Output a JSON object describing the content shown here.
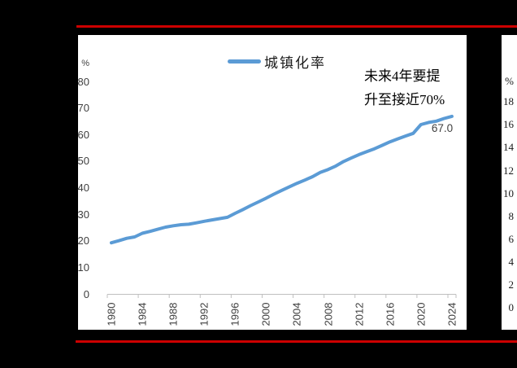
{
  "page": {
    "background_color": "#000000",
    "accent_red": "#CC0000"
  },
  "chart": {
    "legend_label": "城镇化率",
    "unit_label": "%",
    "annotation_line1": "未来4年要提",
    "annotation_line2": "升至接近70%",
    "end_value_label": "67.0",
    "line_color": "#5B9BD5",
    "axis_color": "#BFBFBF",
    "text_color": "#404040",
    "y_ticks": [
      "80",
      "70",
      "60",
      "50",
      "40",
      "30",
      "20",
      "10",
      "0"
    ],
    "x_ticks": [
      "1980",
      "1984",
      "1988",
      "1992",
      "1996",
      "2000",
      "2004",
      "2008",
      "2012",
      "2016",
      "2020",
      "2024"
    ]
  },
  "right_chart": {
    "unit_label": "%",
    "y_ticks": [
      "18",
      "16",
      "14",
      "12",
      "10",
      "8",
      "6",
      "4",
      "2",
      "0"
    ]
  },
  "chart_data": [
    {
      "type": "line",
      "title": "",
      "legend": [
        "城镇化率"
      ],
      "legend_position": "top",
      "ylabel": "%",
      "ylim": [
        0,
        80
      ],
      "ytick_step": 10,
      "xtick_step": 4,
      "grid": false,
      "annotation": "未来4年要提升至接近70%",
      "last_point_label": "67.0",
      "x": [
        1980,
        1981,
        1982,
        1983,
        1984,
        1985,
        1986,
        1987,
        1988,
        1989,
        1990,
        1991,
        1992,
        1993,
        1994,
        1995,
        1996,
        1997,
        1998,
        1999,
        2000,
        2001,
        2002,
        2003,
        2004,
        2005,
        2006,
        2007,
        2008,
        2009,
        2010,
        2011,
        2012,
        2013,
        2014,
        2015,
        2016,
        2017,
        2018,
        2019,
        2020,
        2021,
        2022,
        2023,
        2024
      ],
      "series": [
        {
          "name": "城镇化率",
          "values": [
            19.4,
            20.2,
            21.1,
            21.6,
            23.0,
            23.7,
            24.5,
            25.3,
            25.8,
            26.2,
            26.4,
            26.9,
            27.5,
            28.0,
            28.5,
            29.0,
            30.5,
            31.9,
            33.4,
            34.8,
            36.2,
            37.7,
            39.1,
            40.5,
            41.8,
            43.0,
            44.3,
            45.9,
            47.0,
            48.3,
            50.0,
            51.3,
            52.6,
            53.7,
            54.8,
            56.1,
            57.4,
            58.5,
            59.6,
            60.6,
            63.9,
            64.7,
            65.2,
            66.2,
            67.0
          ]
        }
      ]
    },
    {
      "type": "line",
      "title": "",
      "note": "second chart cut off at image edge; only y-axis labels visible",
      "ylabel": "%",
      "ylim": [
        0,
        18
      ],
      "ytick_step": 2,
      "yticks_visible": [
        18,
        16,
        14,
        12,
        10,
        8,
        6,
        4,
        2,
        0
      ]
    }
  ]
}
